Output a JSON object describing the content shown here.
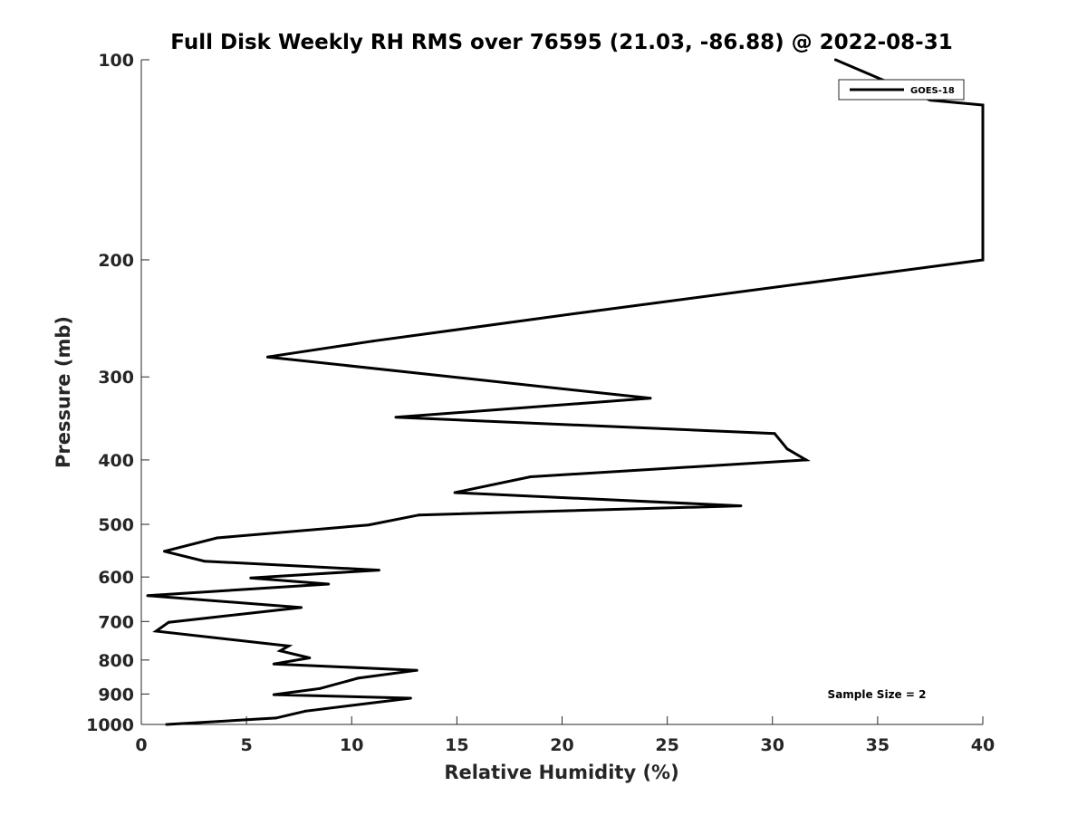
{
  "chart_data": {
    "type": "line",
    "title": "Full Disk Weekly RH RMS over 76595 (21.03, -86.88) @ 2022-08-31",
    "xlabel": "Relative Humidity (%)",
    "ylabel": "Pressure (mb)",
    "xlim": [
      0,
      40
    ],
    "ylim": [
      1000,
      100
    ],
    "yscale": "log",
    "x_ticks": [
      0,
      5,
      10,
      15,
      20,
      25,
      30,
      35,
      40
    ],
    "y_ticks": [
      100,
      200,
      300,
      400,
      500,
      600,
      700,
      800,
      900,
      1000
    ],
    "grid": false,
    "legend_position": "top-right",
    "series": [
      {
        "name": "GOES-18",
        "color": "#000000",
        "points": [
          [
            33.0,
            100
          ],
          [
            37.5,
            115
          ],
          [
            40.0,
            117
          ],
          [
            40.0,
            200
          ],
          [
            21.0,
            240
          ],
          [
            11.0,
            265
          ],
          [
            6.0,
            280
          ],
          [
            24.2,
            323
          ],
          [
            12.1,
            345
          ],
          [
            30.1,
            365
          ],
          [
            30.7,
            385
          ],
          [
            31.6,
            400
          ],
          [
            18.5,
            424
          ],
          [
            14.9,
            448
          ],
          [
            28.5,
            469
          ],
          [
            13.2,
            484
          ],
          [
            10.8,
            501
          ],
          [
            3.6,
            524
          ],
          [
            1.1,
            549
          ],
          [
            3.0,
            568
          ],
          [
            11.3,
            586
          ],
          [
            5.2,
            602
          ],
          [
            8.9,
            615
          ],
          [
            0.3,
            640
          ],
          [
            7.6,
            667
          ],
          [
            1.3,
            702
          ],
          [
            0.7,
            724
          ],
          [
            7.0,
            762
          ],
          [
            6.6,
            775
          ],
          [
            8.0,
            794
          ],
          [
            6.3,
            811
          ],
          [
            13.1,
            829
          ],
          [
            10.3,
            852
          ],
          [
            8.5,
            883
          ],
          [
            6.3,
            902
          ],
          [
            12.8,
            913
          ],
          [
            7.8,
            955
          ],
          [
            6.4,
            978
          ],
          [
            1.2,
            1000
          ]
        ]
      }
    ],
    "annotations": [
      "Sample Size = 2"
    ]
  }
}
